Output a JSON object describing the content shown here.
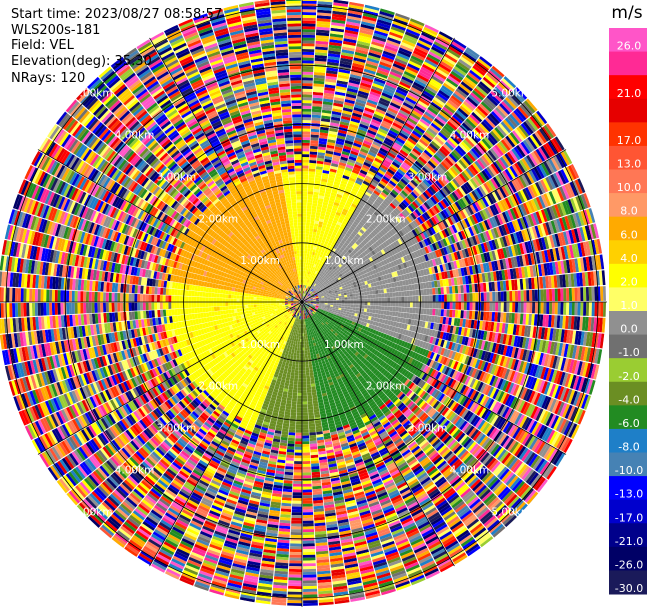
{
  "header": {
    "start_time": "Start time: 2023/08/27 08:58:57",
    "station": "WLS200s-181",
    "field": "Field: VEL",
    "elevation": "Elevation(deg): 35.30",
    "nrays": "NRays: 120"
  },
  "colorbar": {
    "unit": "m/s",
    "bands": [
      {
        "color": "#ff55c8",
        "label": "26.0"
      },
      {
        "color": "#ff2a95",
        "label": ""
      },
      {
        "color": "#ff0000",
        "label": "21.0"
      },
      {
        "color": "#e60000",
        "label": ""
      },
      {
        "color": "#ff3300",
        "label": "17.0"
      },
      {
        "color": "#ff5533",
        "label": "13.0"
      },
      {
        "color": "#ff7755",
        "label": "10.0"
      },
      {
        "color": "#ff9966",
        "label": "8.0"
      },
      {
        "color": "#ffaa00",
        "label": "6.0"
      },
      {
        "color": "#ffd000",
        "label": "4.0"
      },
      {
        "color": "#ffff00",
        "label": "2.0"
      },
      {
        "color": "#ffff66",
        "label": "1.0"
      },
      {
        "color": "#909090",
        "label": "0.0"
      },
      {
        "color": "#707070",
        "label": "-1.0"
      },
      {
        "color": "#9acd32",
        "label": "-2.0"
      },
      {
        "color": "#6b8e23",
        "label": "-4.0"
      },
      {
        "color": "#228b22",
        "label": "-6.0"
      },
      {
        "color": "#1e7fc8",
        "label": "-8.0"
      },
      {
        "color": "#4682b4",
        "label": "-10.0"
      },
      {
        "color": "#0000ff",
        "label": "-13.0"
      },
      {
        "color": "#0000cd",
        "label": "-17.0"
      },
      {
        "color": "#00008b",
        "label": "-21.0"
      },
      {
        "color": "#000066",
        "label": "-26.0"
      },
      {
        "color": "#1a1a5a",
        "label": "-30.0"
      }
    ]
  },
  "chart_data": {
    "type": "ppi",
    "field": "VEL",
    "unit": "m/s",
    "nrays": 120,
    "range_rings": [
      {
        "km": 1.0,
        "label": "1.00km"
      },
      {
        "km": 2.0,
        "label": "2.00km"
      },
      {
        "km": 3.0,
        "label": "3.00km"
      },
      {
        "km": 4.0,
        "label": "4.00km"
      },
      {
        "km": 5.0,
        "label": "5.00km"
      }
    ],
    "wind_pattern": {
      "near_field_km": [
        0.0,
        2.2
      ],
      "sectors": [
        {
          "az_from": 280,
          "az_to": 350,
          "value": 6.0
        },
        {
          "az_from": 350,
          "az_to": 30,
          "value": 2.0
        },
        {
          "az_from": 200,
          "az_to": 280,
          "value": 2.0
        },
        {
          "az_from": 30,
          "az_to": 110,
          "value": 0.0
        },
        {
          "az_from": 110,
          "az_to": 170,
          "value": -6.0
        },
        {
          "az_from": 170,
          "az_to": 200,
          "value": -4.0
        }
      ],
      "far_field": "noise"
    }
  }
}
